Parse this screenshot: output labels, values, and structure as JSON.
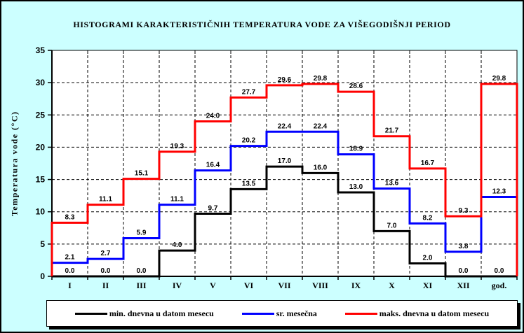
{
  "window": {
    "background": "#CCFFFF",
    "plot_background": "#FFFFFF",
    "border_color": "#000000"
  },
  "chart_data": {
    "type": "line",
    "subtype": "step-histogram",
    "title": "HISTOGRAMI KARAKTERISTIČNIH TEMPERATURA VODE ZA VIŠEGODIŠNJI PERIOD",
    "xlabel": "",
    "ylabel": "Temperatura vode (°C)",
    "categories": [
      "I",
      "II",
      "III",
      "IV",
      "V",
      "VI",
      "VII",
      "VIII",
      "IX",
      "X",
      "XI",
      "XII",
      "god."
    ],
    "ylim": [
      0,
      35
    ],
    "ytick_step": 5,
    "grid": true,
    "grid_style": "dashed",
    "legend_position": "bottom",
    "value_labels_shown": true,
    "series": [
      {
        "name": "min. dnevna u datom mesecu",
        "color": "#000000",
        "values": [
          0.0,
          0.0,
          0.0,
          4.0,
          9.7,
          13.5,
          17.0,
          16.0,
          13.0,
          7.0,
          2.0,
          0.0,
          0.0
        ]
      },
      {
        "name": "sr. mesečna",
        "color": "#0000FF",
        "values": [
          2.1,
          2.7,
          5.9,
          11.1,
          16.4,
          20.2,
          22.4,
          22.4,
          18.9,
          13.6,
          8.2,
          3.8,
          12.3
        ]
      },
      {
        "name": "maks. dnevna u datom mesecu",
        "color": "#FF0000",
        "values": [
          8.3,
          11.1,
          15.1,
          19.3,
          24.0,
          27.7,
          29.6,
          29.8,
          28.6,
          21.7,
          16.7,
          9.3,
          29.8
        ]
      }
    ]
  }
}
